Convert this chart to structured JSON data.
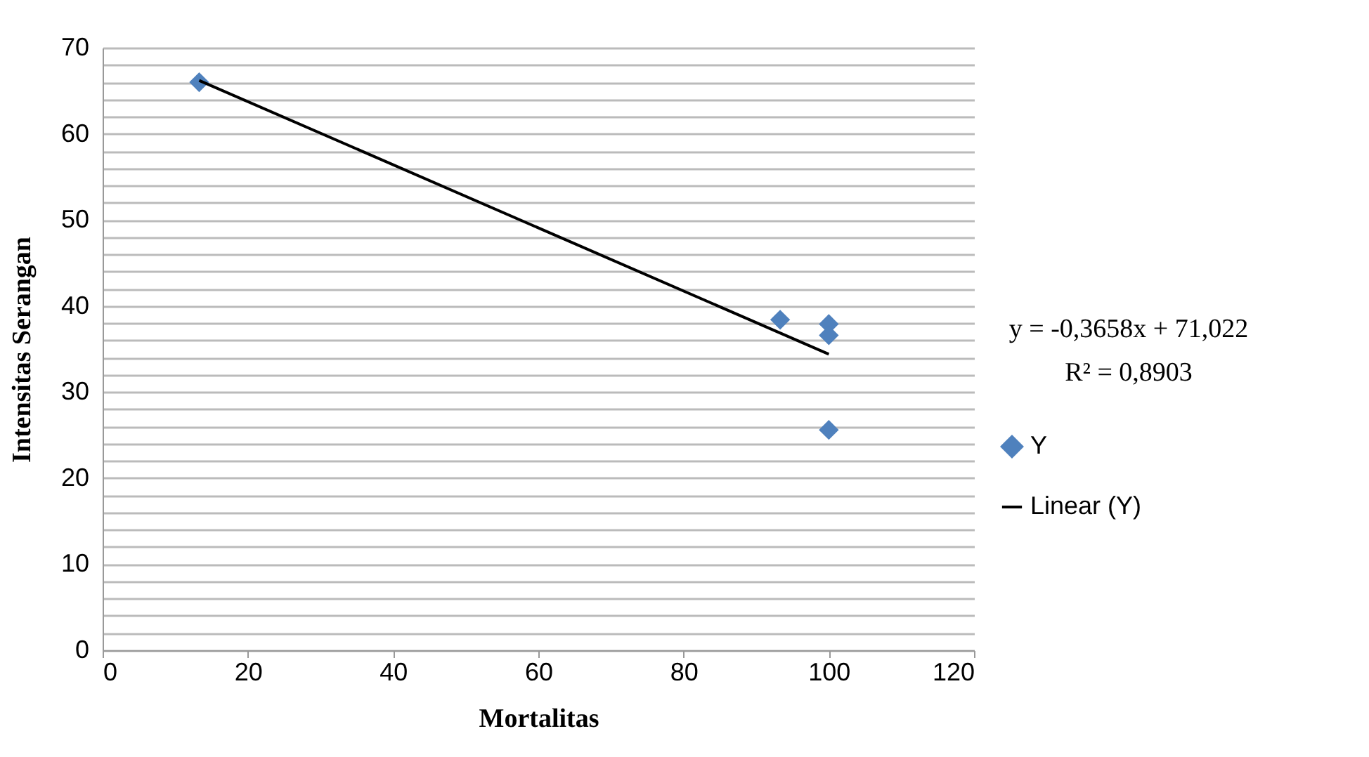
{
  "chart_data": {
    "type": "scatter",
    "xlabel": "Mortalitas",
    "ylabel": "Intensitas Serangan",
    "series": [
      {
        "name": "Y",
        "marker": "diamond",
        "color": "#4f81bd",
        "x": [
          13.3,
          93.3,
          100,
          100,
          100
        ],
        "values": [
          66,
          38.4,
          37.9,
          36.6,
          25.6
        ]
      },
      {
        "name": "Linear (Y)",
        "type": "line",
        "color": "#000000",
        "x": [
          13.3,
          100
        ],
        "values": [
          66.2,
          34.4
        ]
      }
    ],
    "annotations": [
      "y = -0,3658x + 71,022",
      "R² = 0,8903"
    ],
    "xlim": [
      0,
      120
    ],
    "xticks": [
      0,
      20,
      40,
      60,
      80,
      100,
      120
    ],
    "ylim": [
      0,
      70
    ],
    "yticks": [
      0,
      {
        "value": 2,
        "label": null
      },
      {
        "value": 4,
        "label": null
      },
      {
        "value": 6,
        "label": null
      },
      {
        "value": 8,
        "label": null
      },
      10,
      {
        "value": 12,
        "label": null
      },
      {
        "value": 14,
        "label": null
      },
      {
        "value": 16,
        "label": null
      },
      {
        "value": 18,
        "label": null
      },
      20,
      {
        "value": 22,
        "label": null
      },
      {
        "value": 24,
        "label": null
      },
      {
        "value": 26,
        "label": null
      },
      {
        "value": 28,
        "label": null
      },
      30,
      {
        "value": 32,
        "label": null
      },
      {
        "value": 34,
        "label": null
      },
      {
        "value": 36,
        "label": null
      },
      {
        "value": 38,
        "label": null
      },
      40,
      {
        "value": 42,
        "label": null
      },
      {
        "value": 44,
        "label": null
      },
      {
        "value": 46,
        "label": null
      },
      {
        "value": 48,
        "label": null
      },
      50,
      {
        "value": 52,
        "label": null
      },
      {
        "value": 54,
        "label": null
      },
      {
        "value": 56,
        "label": null
      },
      {
        "value": 58,
        "label": null
      },
      60,
      {
        "value": 62,
        "label": null
      },
      {
        "value": 64,
        "label": null
      },
      {
        "value": 66,
        "label": null
      },
      {
        "value": 68,
        "label": null
      },
      70
    ],
    "grid": "y",
    "legend": "right"
  }
}
